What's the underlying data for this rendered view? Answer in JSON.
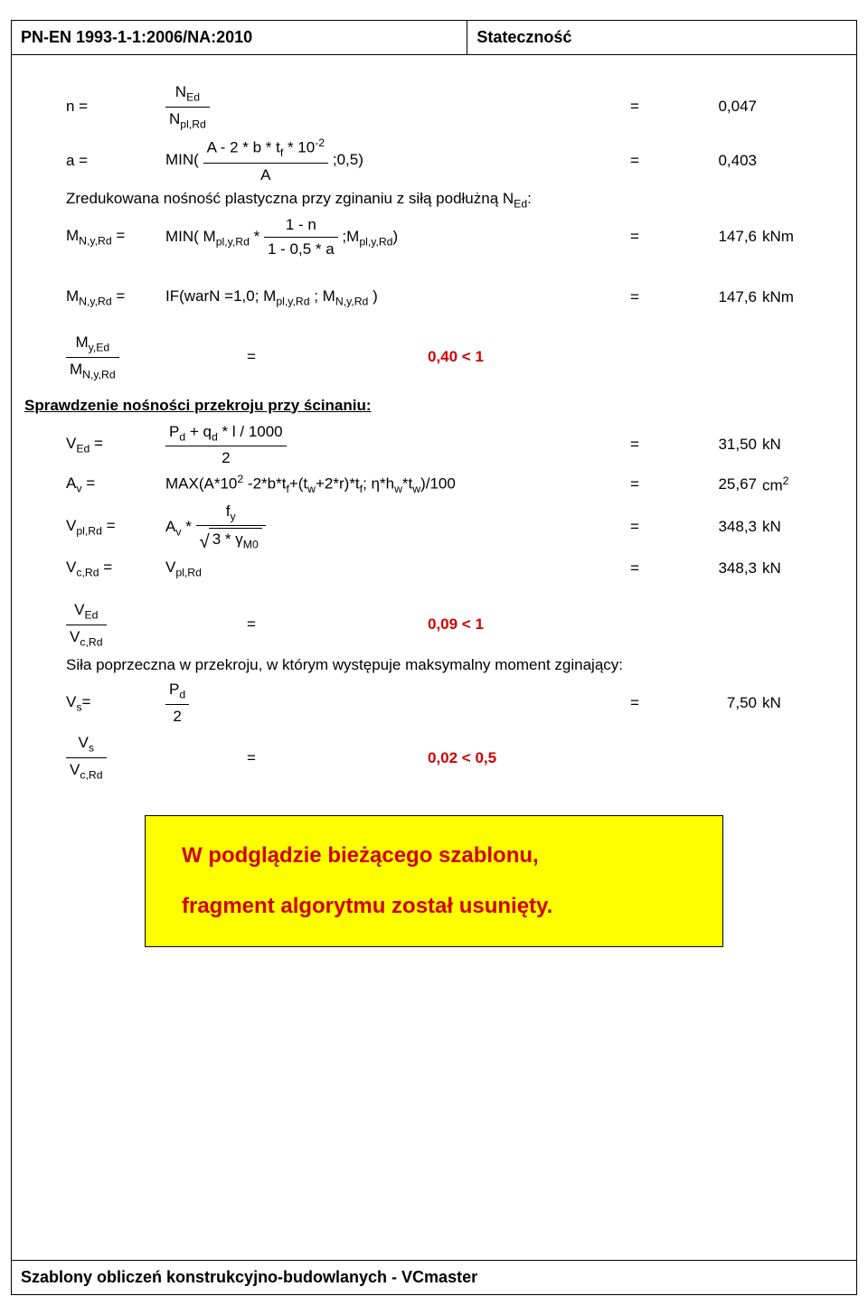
{
  "header": {
    "left": "PN-EN 1993-1-1:2006/NA:2010",
    "right": "Stateczność"
  },
  "rows": {
    "n": {
      "lhs": "n =",
      "num_html": "N<sub>Ed</sub>",
      "den_html": "N<sub>pl,Rd</sub>",
      "eq": "=",
      "val": "0,047"
    },
    "a": {
      "lhs": "a =",
      "prefix": "MIN(",
      "num_html": "A - 2 * b * t<sub>f</sub> * 10<sup>-2</sup>",
      "den_html": "A",
      "suffix": ";0,5)",
      "eq": "=",
      "val": "0,403"
    },
    "note1": "Zredukowana nośność plastyczna przy zginaniu z siłą podłużną N<sub>Ed</sub>:",
    "mn1": {
      "lhs_html": "M<sub>N,y,Rd</sub> =",
      "prefix_html": "MIN( M<sub>pl,y,Rd</sub>  *",
      "num": "1 - n",
      "den": "1 - 0,5 * a",
      "suffix_html": ";M<sub>pl,y,Rd</sub>)",
      "eq": "=",
      "val": "147,6",
      "unit": "kNm"
    },
    "mn2": {
      "lhs_html": "M<sub>N,y,Rd</sub> =",
      "formula_html": "IF(warN =1,0; M<sub>pl,y,Rd</sub> ; M<sub>N,y,Rd</sub> )",
      "eq": "=",
      "val": "147,6",
      "unit": "kNm"
    },
    "ratio1": {
      "num_html": "M<sub>y,Ed</sub>",
      "den_html": "M<sub>N,y,Rd</sub>",
      "eq": "=",
      "val": "0,40 < 1"
    }
  },
  "section2": {
    "title": "Sprawdzenie nośności przekroju przy ścinaniu:",
    "ved": {
      "lhs_html": "V<sub>Ed</sub> =",
      "num_html": "P<sub>d</sub> + q<sub>d</sub> * l / 1000",
      "den": "2",
      "eq": "=",
      "val": "31,50",
      "unit": "kN"
    },
    "av": {
      "lhs_html": "A<sub>v</sub> =",
      "formula_html": "MAX(A*10<sup>2</sup> -2*b*t<sub>f</sub>+(t<sub>w</sub>+2*r)*t<sub>f</sub>; η*h<sub>w</sub>*t<sub>w</sub>)/100",
      "eq": "=",
      "val": "25,67",
      "unit": "cm<sup>2</sup>"
    },
    "vpl": {
      "lhs_html": "V<sub>pl,Rd</sub> =",
      "prefix_html": "A<sub>v</sub> *",
      "num_html": "f<sub>y</sub>",
      "den_html": "3 * γ<sub>M0</sub>",
      "eq": "=",
      "val": "348,3",
      "unit": "kN"
    },
    "vc": {
      "lhs_html": "V<sub>c,Rd</sub> =",
      "formula_html": "V<sub>pl,Rd</sub>",
      "eq": "=",
      "val": "348,3",
      "unit": "kN"
    },
    "ratio2": {
      "num_html": "V<sub>Ed</sub>",
      "den_html": "V<sub>c,Rd</sub>",
      "eq": "=",
      "val": "0,09 < 1"
    },
    "note2": "Siła poprzeczna w przekroju, w którym występuje maksymalny moment zginający:",
    "vs": {
      "lhs_html": "V<sub>s</sub>=",
      "num_html": "P<sub>d</sub>",
      "den": "2",
      "eq": "=",
      "val": "7,50",
      "unit": "kN"
    },
    "ratio3": {
      "num_html": "V<sub>s</sub>",
      "den_html": "V<sub>c,Rd</sub>",
      "eq": "=",
      "val": "0,02 < 0,5"
    }
  },
  "yellow": {
    "line1": "W podglądzie bieżącego szablonu,",
    "line2": "fragment algorytmu został usunięty."
  },
  "footer": "Szablony obliczeń konstrukcyjno-budowlanych - VCmaster"
}
